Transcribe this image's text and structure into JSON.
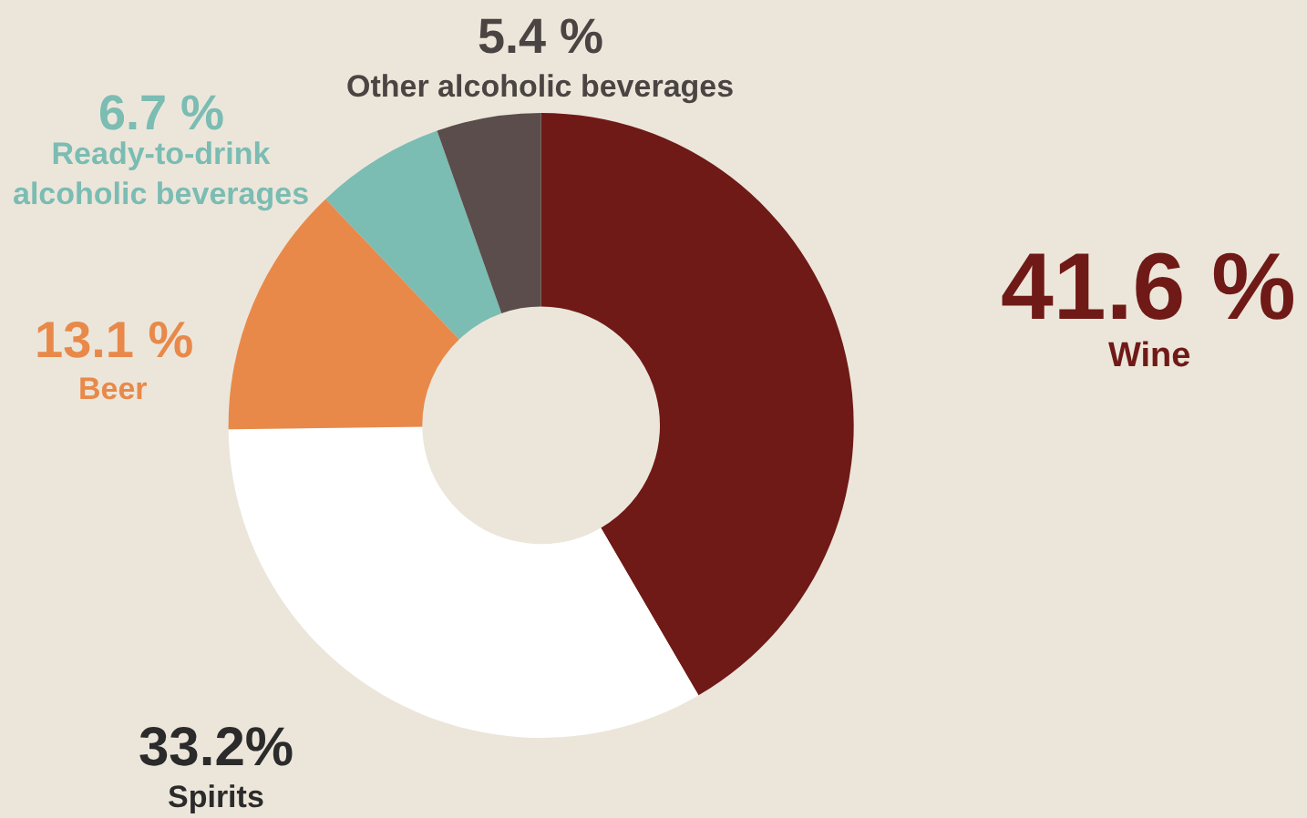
{
  "chart_data": {
    "type": "donut",
    "categories": [
      "Wine",
      "Spirits",
      "Beer",
      "Ready-to-drink\nalcoholic beverages",
      "Other alcoholic beverages"
    ],
    "values": [
      41.6,
      33.2,
      13.1,
      6.7,
      5.4
    ],
    "colors": [
      "#6f1a17",
      "#ffffff",
      "#e8894a",
      "#7bbcb3",
      "#5a4d4b"
    ],
    "value_labels": [
      "41.6 %",
      "33.2%",
      "13.1 %",
      "6.7 %",
      "5.4 %"
    ],
    "legend": false
  }
}
